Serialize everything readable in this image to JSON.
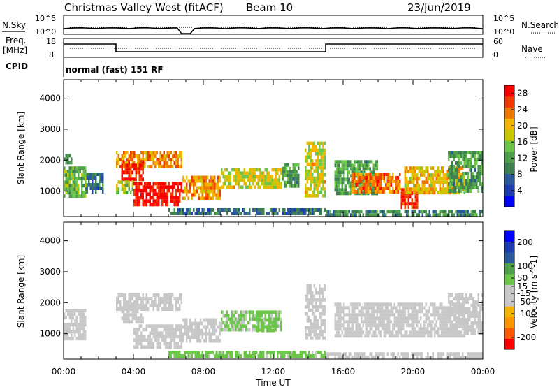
{
  "header": {
    "station": "Christmas Valley West (fitACF)",
    "beam": "Beam 10",
    "date": "23/Jun/2019"
  },
  "strip": {
    "nsky_label": "N.Sky",
    "nsearch_label": "N.Search",
    "nsky_ticks": [
      "10^5",
      "10^0"
    ],
    "nsearch_ticks": [
      "10^5",
      "10^0"
    ],
    "freq_label_1": "Freq.",
    "freq_label_2": "[MHz]",
    "freq_ticks": [
      "18",
      "8"
    ],
    "nave_label": "Nave",
    "nave_ticks": [
      "60",
      "0"
    ],
    "cpid_label": "CPID",
    "cpid_text": "normal (fast) 151 RF"
  },
  "colors": {
    "power": [
      "#0000ff",
      "#1e3cb4",
      "#2a5a9c",
      "#3f8050",
      "#4ea04a",
      "#6cc64a",
      "#c8c800",
      "#f5b400",
      "#f07800",
      "#f03c00",
      "#ff0000"
    ],
    "velocity": [
      "#ff0000",
      "#ff5a00",
      "#ff9600",
      "#f5b400",
      "#c8c8c8",
      "#c8c8c8",
      "#6cc64a",
      "#4ea04a",
      "#2a5a9c",
      "#1e3cb4",
      "#0000ff"
    ]
  },
  "chart_data": [
    {
      "type": "heatmap",
      "title": "",
      "xlabel": "",
      "ylabel": "Slant Range [km]",
      "xlim": [
        "00:00",
        "24:00"
      ],
      "ylim": [
        180,
        4600
      ],
      "x_ticks": [
        "00:00",
        "04:00",
        "08:00",
        "12:00",
        "16:00",
        "20:00",
        "00:00"
      ],
      "y_ticks": [
        1000,
        2000,
        3000,
        4000
      ],
      "colorbar_label": "Power [dB]",
      "colorbar_ticks": [
        4,
        8,
        12,
        16,
        20,
        24,
        28
      ],
      "colorbar_range": [
        0,
        30
      ],
      "regions": [
        {
          "t0": 0.0,
          "t1": 1.3,
          "r0": 800,
          "r1": 1800,
          "value": 14
        },
        {
          "t0": 0.0,
          "t1": 0.5,
          "r0": 1900,
          "r1": 2200,
          "value": 10
        },
        {
          "t0": 1.3,
          "t1": 2.3,
          "r0": 1000,
          "r1": 1600,
          "value": 8
        },
        {
          "t0": 3.0,
          "t1": 6.8,
          "r0": 1800,
          "r1": 2300,
          "value": 22
        },
        {
          "t0": 3.3,
          "t1": 4.6,
          "r0": 1400,
          "r1": 2000,
          "value": 28
        },
        {
          "t0": 3.0,
          "t1": 4.0,
          "r0": 1000,
          "r1": 1350,
          "value": 16
        },
        {
          "t0": 4.0,
          "t1": 6.8,
          "r0": 580,
          "r1": 1300,
          "value": 29
        },
        {
          "t0": 6.8,
          "t1": 9.0,
          "r0": 750,
          "r1": 1500,
          "value": 22
        },
        {
          "t0": 9.0,
          "t1": 12.5,
          "r0": 1100,
          "r1": 1750,
          "value": 18
        },
        {
          "t0": 12.5,
          "t1": 13.5,
          "r0": 1200,
          "r1": 1900,
          "value": 12
        },
        {
          "t0": 13.8,
          "t1": 15.0,
          "r0": 800,
          "r1": 2600,
          "value": 18
        },
        {
          "t0": 15.5,
          "t1": 18.0,
          "r0": 900,
          "r1": 2000,
          "value": 12
        },
        {
          "t0": 16.5,
          "t1": 19.3,
          "r0": 1000,
          "r1": 1600,
          "value": 24
        },
        {
          "t0": 19.3,
          "t1": 20.3,
          "r0": 450,
          "r1": 1100,
          "value": 28
        },
        {
          "t0": 19.5,
          "t1": 23.0,
          "r0": 1000,
          "r1": 1800,
          "value": 20
        },
        {
          "t0": 22.0,
          "t1": 24.0,
          "r0": 1000,
          "r1": 2300,
          "value": 12
        },
        {
          "t0": 6.0,
          "t1": 15.0,
          "r0": 250,
          "r1": 450,
          "value": 8
        },
        {
          "t0": 15.0,
          "t1": 24.0,
          "r0": 250,
          "r1": 400,
          "value": 10
        }
      ]
    },
    {
      "type": "heatmap",
      "title": "",
      "xlabel": "Time UT",
      "ylabel": "Slant Range [km]",
      "xlim": [
        "00:00",
        "24:00"
      ],
      "ylim": [
        180,
        4600
      ],
      "x_ticks": [
        "00:00",
        "04:00",
        "08:00",
        "12:00",
        "16:00",
        "20:00",
        "00:00"
      ],
      "y_ticks": [
        1000,
        2000,
        3000,
        4000
      ],
      "colorbar_label": "Velocity [m s^-1]",
      "colorbar_ticks": [
        -200,
        -100,
        -50,
        -15,
        15,
        50,
        100,
        200
      ],
      "colorbar_range": [
        -250,
        250
      ],
      "regions": [
        {
          "t0": 0.0,
          "t1": 1.3,
          "r0": 800,
          "r1": 1800,
          "value": 0
        },
        {
          "t0": 3.0,
          "t1": 6.8,
          "r0": 1800,
          "r1": 2300,
          "value": 0
        },
        {
          "t0": 3.3,
          "t1": 4.6,
          "r0": 1400,
          "r1": 2000,
          "value": 0
        },
        {
          "t0": 4.0,
          "t1": 6.8,
          "r0": 580,
          "r1": 1300,
          "value": -30
        },
        {
          "t0": 6.8,
          "t1": 9.0,
          "r0": 750,
          "r1": 1500,
          "value": -40
        },
        {
          "t0": 9.0,
          "t1": 12.5,
          "r0": 1100,
          "r1": 1750,
          "value": 30
        },
        {
          "t0": 11.0,
          "t1": 12.2,
          "r0": 1150,
          "r1": 1500,
          "value": 40
        },
        {
          "t0": 13.8,
          "t1": 15.0,
          "r0": 800,
          "r1": 2600,
          "value": 0
        },
        {
          "t0": 15.5,
          "t1": 23.0,
          "r0": 900,
          "r1": 2000,
          "value": 0
        },
        {
          "t0": 22.0,
          "t1": 24.0,
          "r0": 1000,
          "r1": 2300,
          "value": 0
        },
        {
          "t0": 6.0,
          "t1": 15.0,
          "r0": 250,
          "r1": 450,
          "value": 40
        },
        {
          "t0": 15.0,
          "t1": 24.0,
          "r0": 250,
          "r1": 400,
          "value": -40
        }
      ]
    }
  ]
}
